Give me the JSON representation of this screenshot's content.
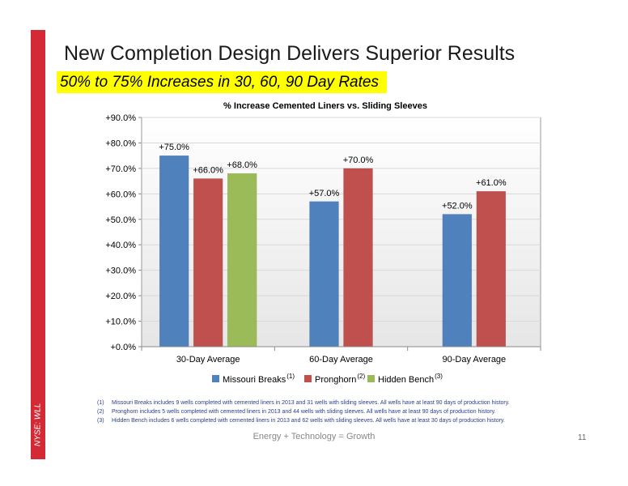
{
  "side_label": "NYSE: WLL",
  "title": "New Completion Design Delivers Superior Results",
  "subtitle": "50% to 75% Increases in 30, 60, 90 Day Rates",
  "chart_data": {
    "type": "bar",
    "title": "% Increase Cemented Liners vs. Sliding Sleeves",
    "categories": [
      "30-Day Average",
      "60-Day Average",
      "90-Day Average"
    ],
    "series": [
      {
        "name": "Missouri Breaks",
        "note": "(1)",
        "color": "#4f81bd",
        "values": [
          75.0,
          57.0,
          52.0
        ],
        "labels": [
          "+75.0%",
          "+57.0%",
          "+52.0%"
        ]
      },
      {
        "name": "Pronghorn",
        "note": "(2)",
        "color": "#c0504d",
        "values": [
          66.0,
          70.0,
          61.0
        ],
        "labels": [
          "+66.0%",
          "+70.0%",
          "+61.0%"
        ]
      },
      {
        "name": "Hidden Bench",
        "note": "(3)",
        "color": "#9bbb59",
        "values": [
          68.0,
          null,
          null
        ],
        "labels": [
          "+68.0%",
          "",
          ""
        ]
      }
    ],
    "ylim": [
      0,
      90
    ],
    "yticks": [
      0,
      10,
      20,
      30,
      40,
      50,
      60,
      70,
      80,
      90
    ],
    "ytick_labels": [
      "+0.0%",
      "+10.0%",
      "+20.0%",
      "+30.0%",
      "+40.0%",
      "+50.0%",
      "+60.0%",
      "+70.0%",
      "+80.0%",
      "+90.0%"
    ],
    "grid": true,
    "legend": "bottom"
  },
  "footnotes": [
    {
      "num": "(1)",
      "text": "Missouri Breaks includes 9 wells completed with cemented liners in 2013 and 31 wells with sliding sleeves.  All wells have at least 90 days of production history."
    },
    {
      "num": "(2)",
      "text": "Pronghorn includes 5 wells completed with cemented liners in 2013 and 44 wells with sliding sleeves. All wells have at least 90 days of production history."
    },
    {
      "num": "(3)",
      "text": "Hidden Bench includes  6 wells completed with cemented liners in 2013 and 62 wells with sliding sleeves. All wells have at least 30 days of production history."
    }
  ],
  "footer": "Energy + Technology = Growth",
  "page_number": "11"
}
